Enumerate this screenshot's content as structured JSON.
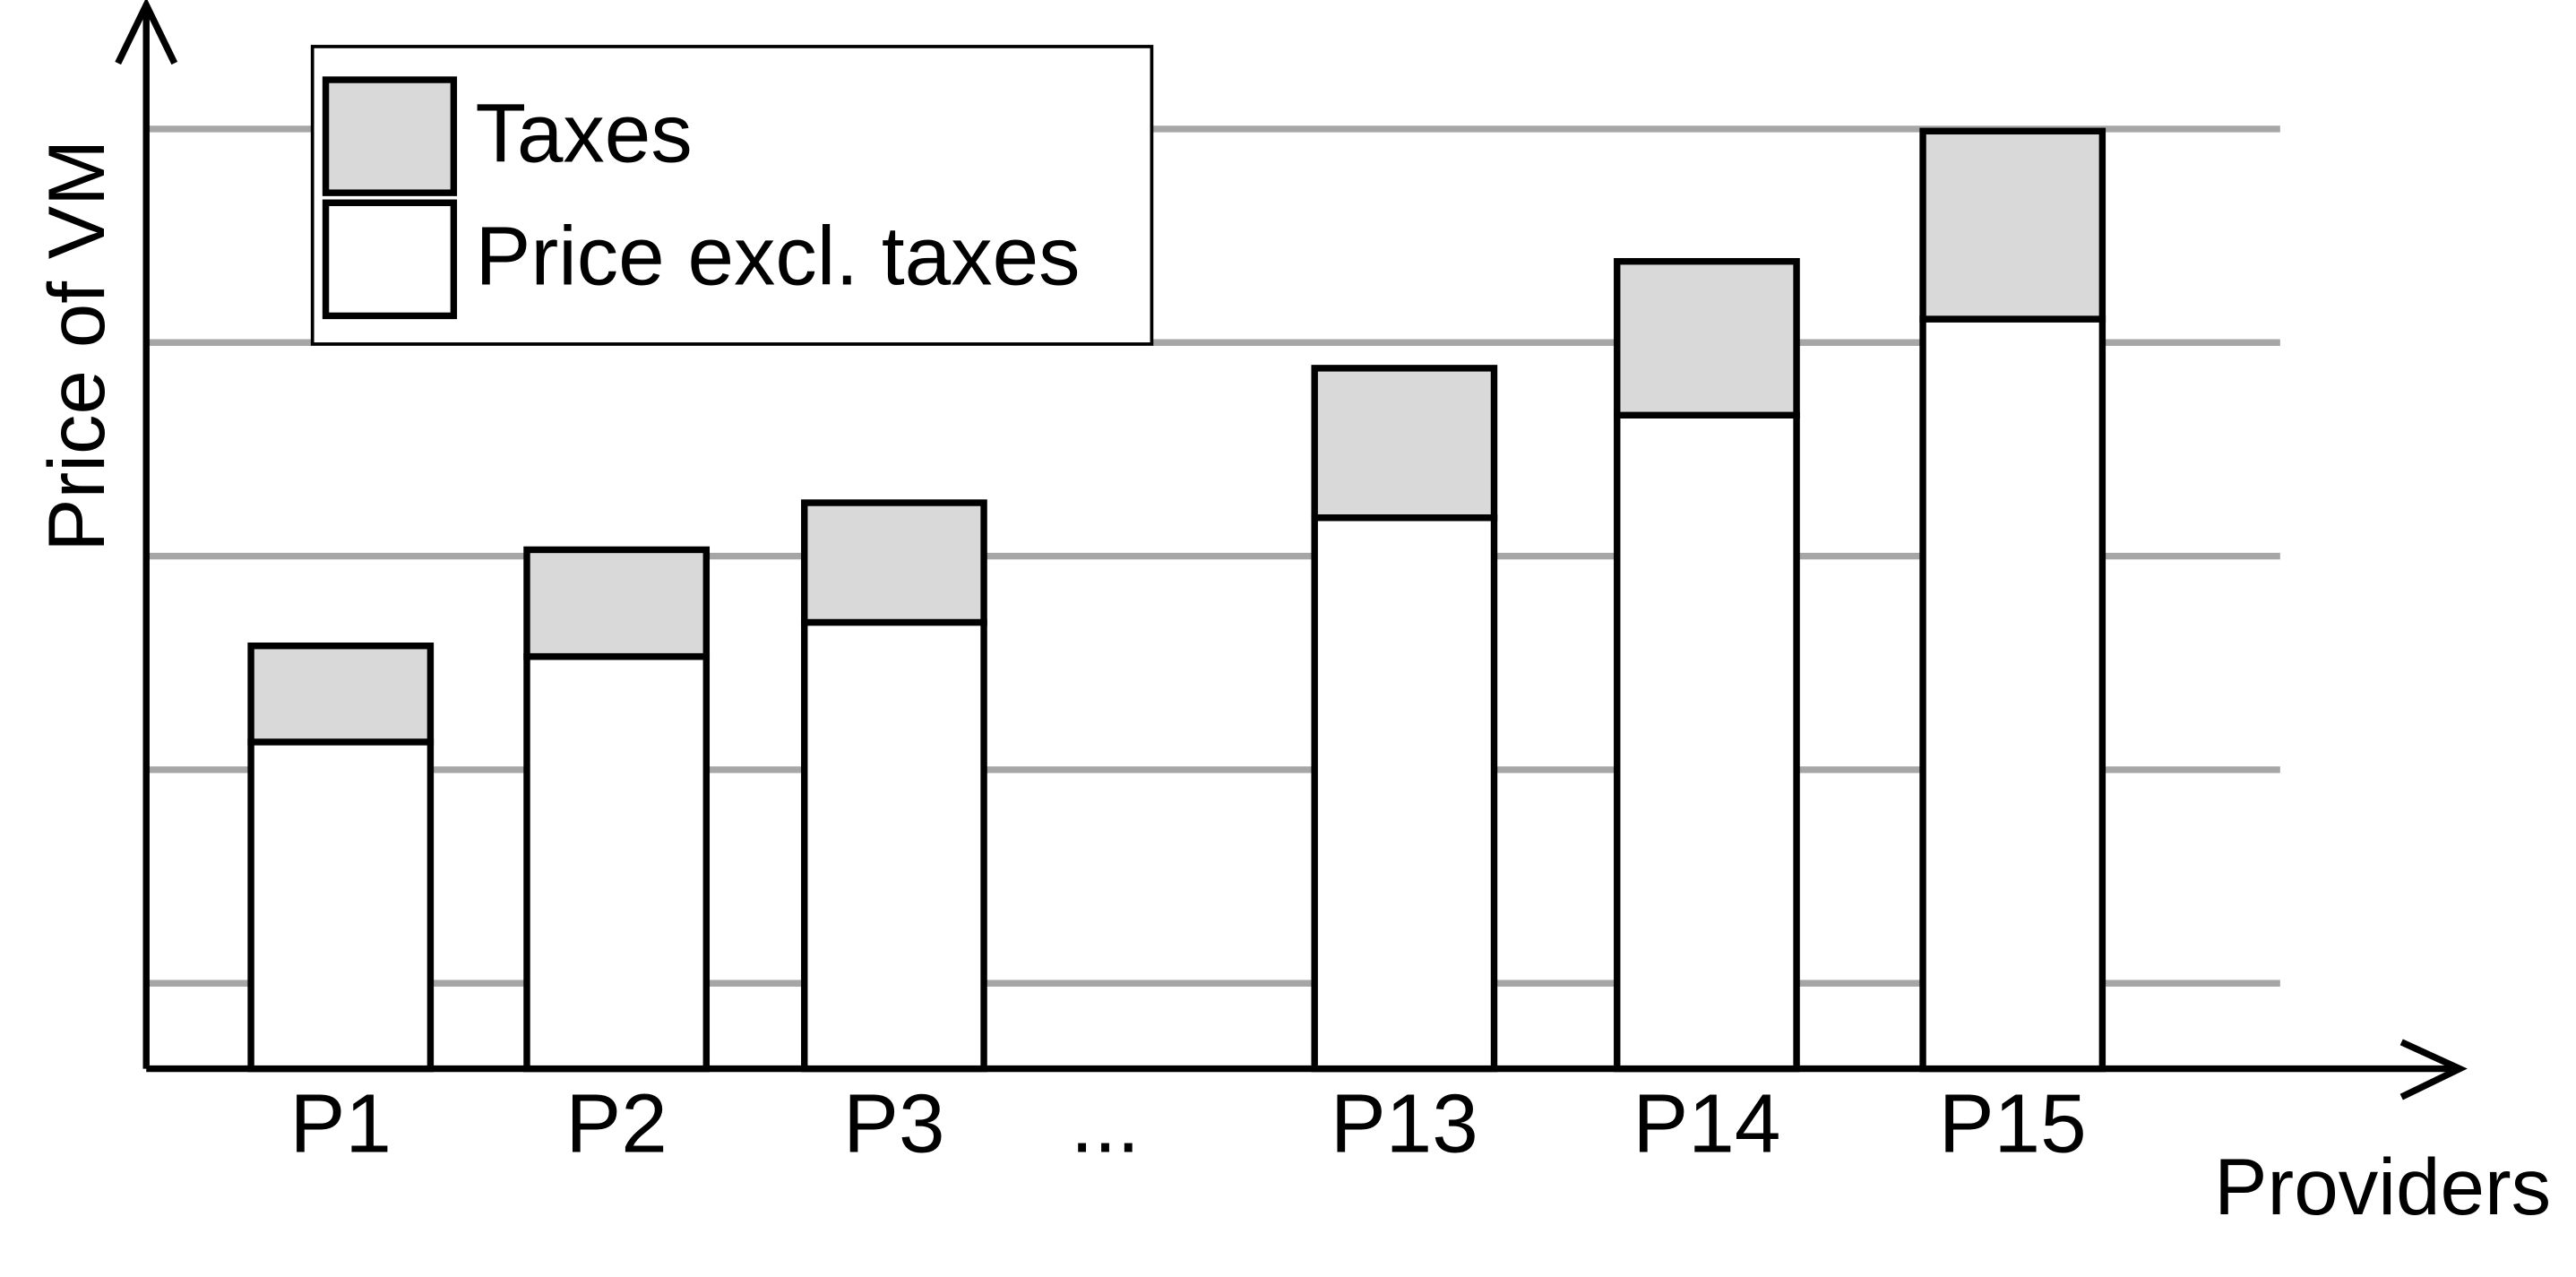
{
  "chart_data": {
    "type": "bar",
    "stacked": true,
    "x_label": "Providers",
    "y_label": "Price of VM",
    "categories": [
      "P1",
      "P2",
      "P3",
      "...",
      "P13",
      "P14",
      "P15"
    ],
    "series": [
      {
        "name": "Price excl. taxes",
        "color": "#ffffff",
        "values": [
          1.53,
          1.93,
          2.09,
          null,
          2.58,
          3.06,
          3.51
        ]
      },
      {
        "name": "Taxes",
        "color": "#d9d9d9",
        "values": [
          0.45,
          0.5,
          0.56,
          null,
          0.7,
          0.72,
          0.88
        ]
      }
    ],
    "ylim": [
      0,
      5
    ],
    "yticks": [
      0.4,
      1.4,
      2.4,
      3.4,
      4.4
    ],
    "grid": true,
    "legend": "upper left"
  }
}
